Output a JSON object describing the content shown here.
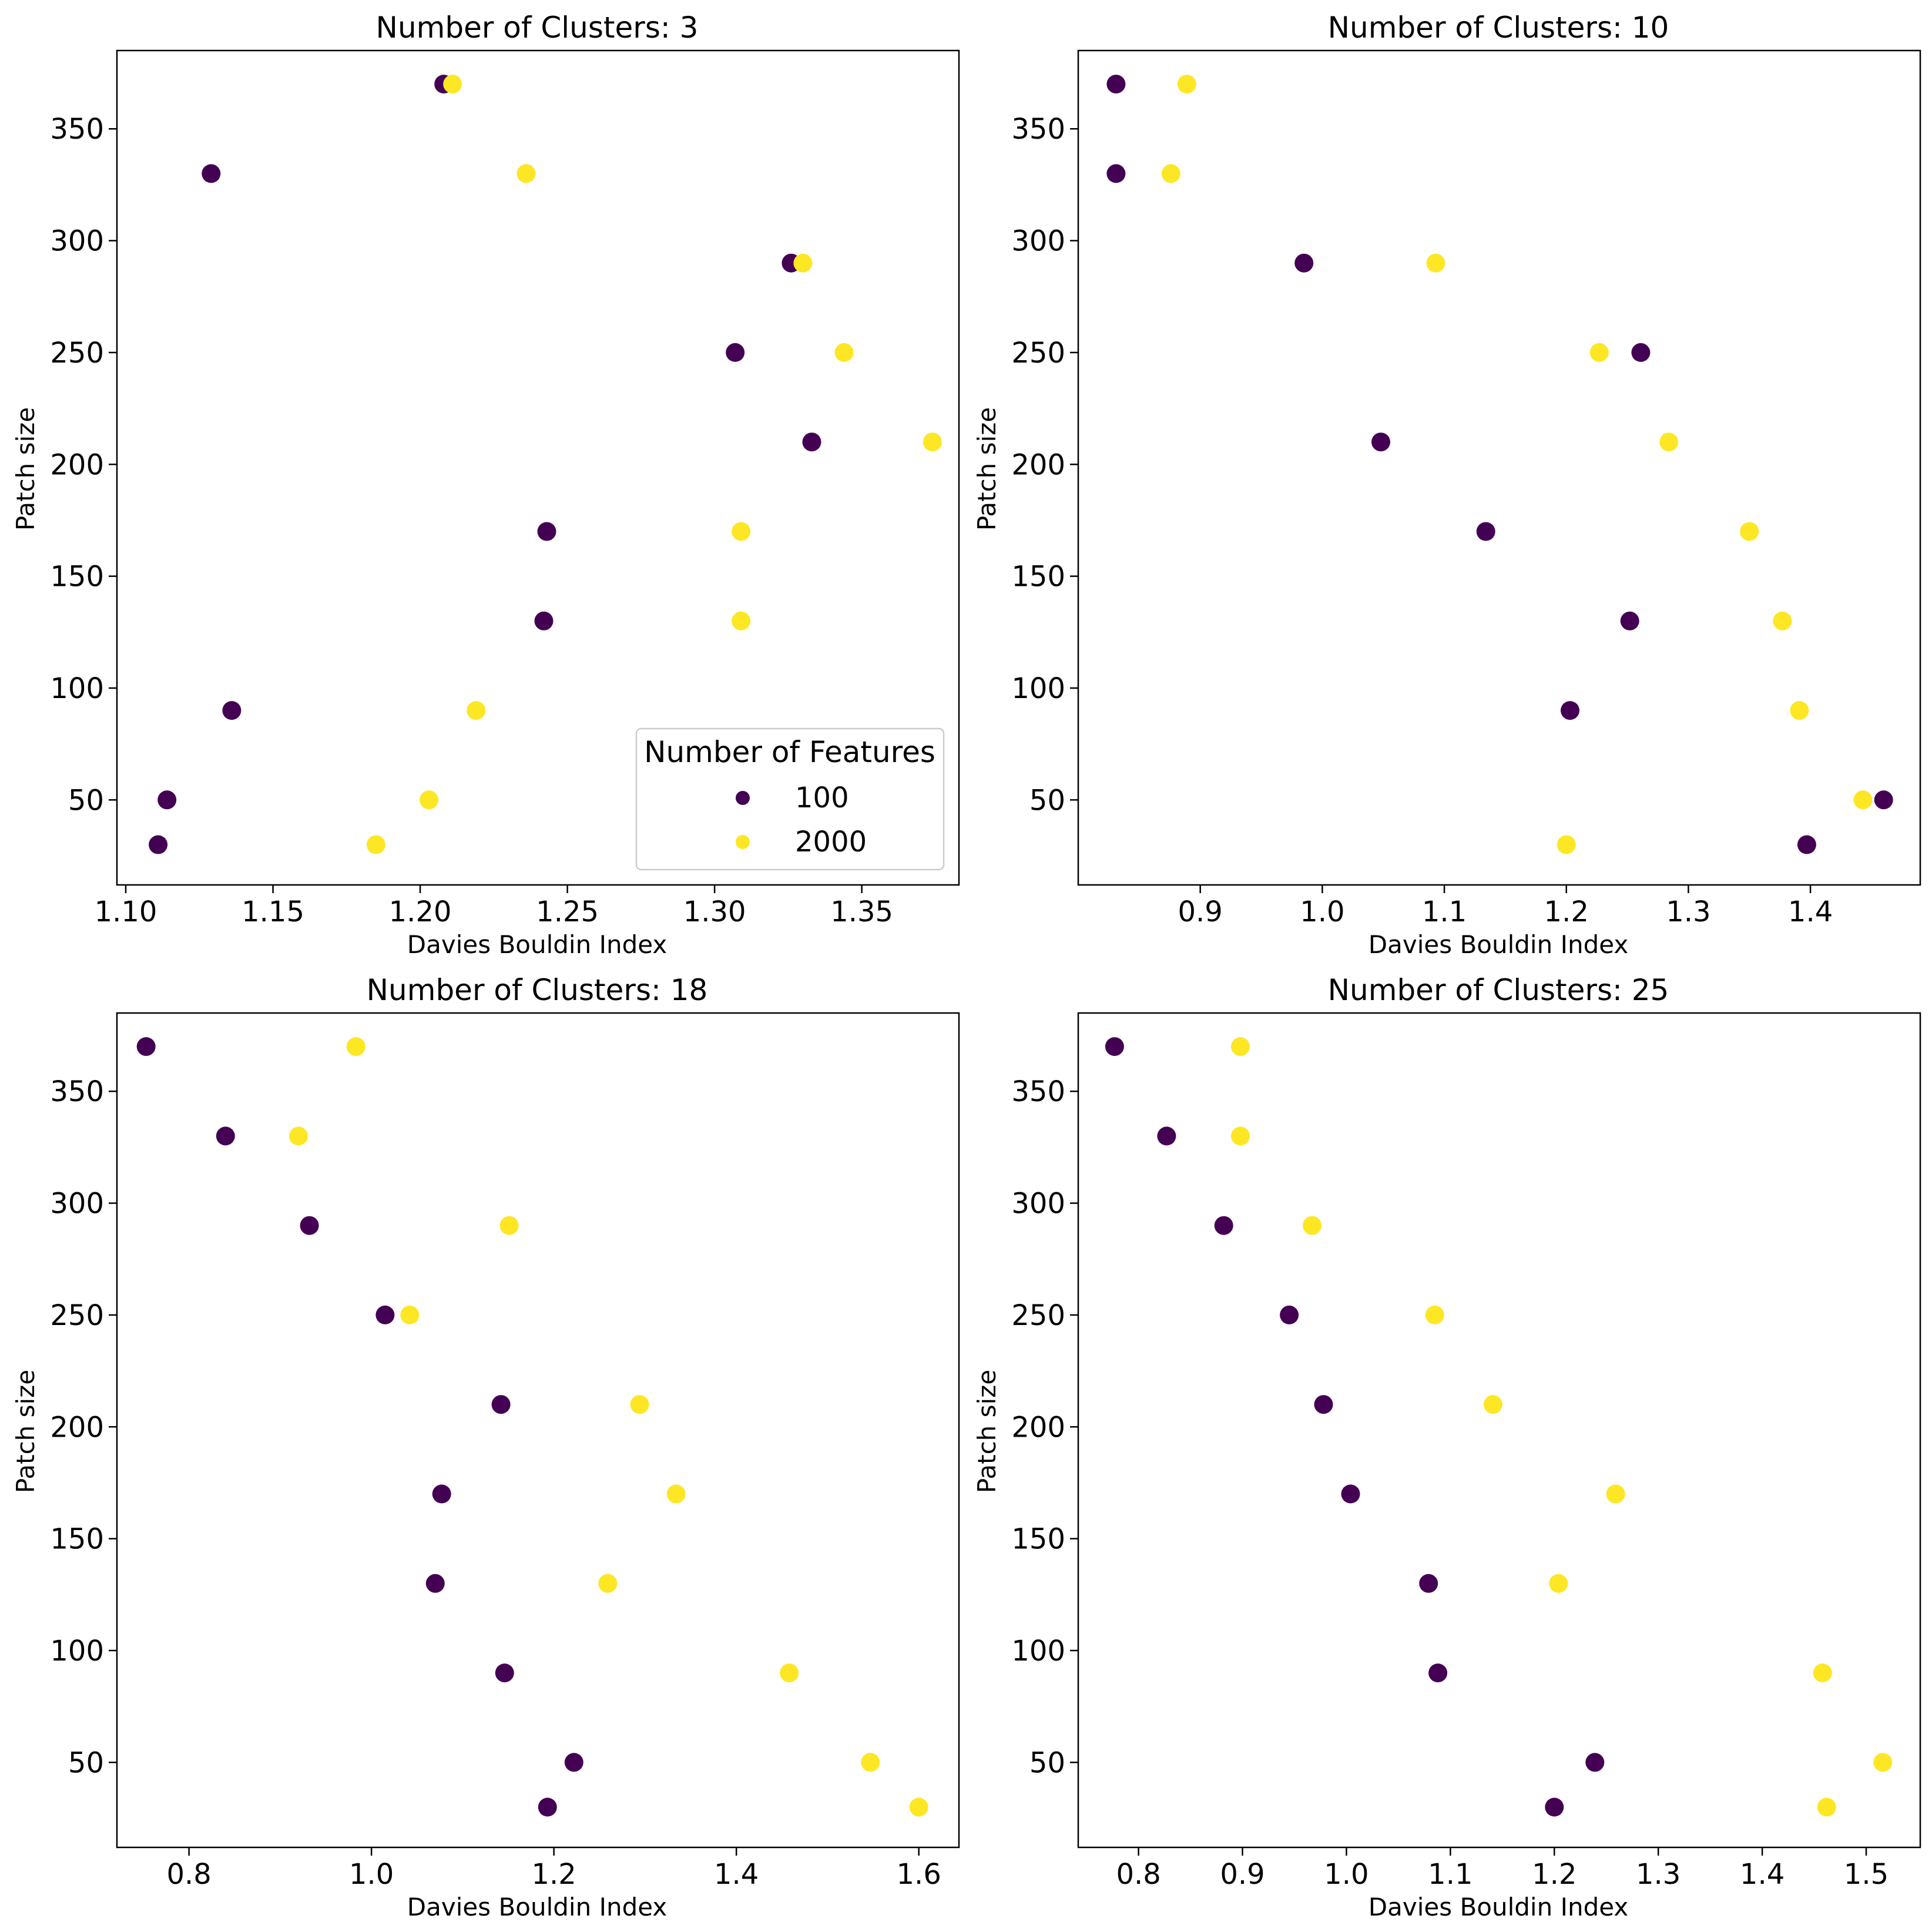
{
  "colors": {
    "feat_100": "#440154",
    "feat_2000": "#fde725"
  },
  "legend": {
    "title": "Number of Features",
    "entries": [
      {
        "label": "100",
        "color": "#440154"
      },
      {
        "label": "2000",
        "color": "#fde725"
      }
    ]
  },
  "chart_data": [
    {
      "type": "scatter",
      "title": "Number of Clusters: 3",
      "xlabel": "Davies Bouldin Index",
      "ylabel": "Patch size",
      "xlim": [
        1.097,
        1.383
      ],
      "ylim": [
        12,
        385
      ],
      "xticks": [
        1.1,
        1.15,
        1.2,
        1.25,
        1.3,
        1.35
      ],
      "xtick_labels": [
        "1.10",
        "1.15",
        "1.20",
        "1.25",
        "1.30",
        "1.35"
      ],
      "yticks": [
        50,
        100,
        150,
        200,
        250,
        300,
        350
      ],
      "ytick_labels": [
        "50",
        "100",
        "150",
        "200",
        "250",
        "300",
        "350"
      ],
      "legend_position": "lower-right",
      "series": [
        {
          "name": "100",
          "points": [
            [
              1.111,
              30
            ],
            [
              1.114,
              50
            ],
            [
              1.136,
              90
            ],
            [
              1.242,
              130
            ],
            [
              1.243,
              170
            ],
            [
              1.333,
              210
            ],
            [
              1.307,
              250
            ],
            [
              1.326,
              290
            ],
            [
              1.129,
              330
            ],
            [
              1.208,
              370
            ]
          ]
        },
        {
          "name": "2000",
          "points": [
            [
              1.185,
              30
            ],
            [
              1.203,
              50
            ],
            [
              1.219,
              90
            ],
            [
              1.309,
              130
            ],
            [
              1.309,
              170
            ],
            [
              1.374,
              210
            ],
            [
              1.344,
              250
            ],
            [
              1.33,
              290
            ],
            [
              1.236,
              330
            ],
            [
              1.211,
              370
            ]
          ]
        }
      ]
    },
    {
      "type": "scatter",
      "title": "Number of Clusters: 10",
      "xlabel": "Davies Bouldin Index",
      "ylabel": "Patch size",
      "xlim": [
        0.8,
        1.49
      ],
      "ylim": [
        12,
        385
      ],
      "xticks": [
        0.9,
        1.0,
        1.1,
        1.2,
        1.3,
        1.4
      ],
      "xtick_labels": [
        "0.9",
        "1.0",
        "1.1",
        "1.2",
        "1.3",
        "1.4"
      ],
      "yticks": [
        50,
        100,
        150,
        200,
        250,
        300,
        350
      ],
      "ytick_labels": [
        "50",
        "100",
        "150",
        "200",
        "250",
        "300",
        "350"
      ],
      "series": [
        {
          "name": "100",
          "points": [
            [
              1.397,
              30
            ],
            [
              1.46,
              50
            ],
            [
              1.203,
              90
            ],
            [
              1.252,
              130
            ],
            [
              1.134,
              170
            ],
            [
              1.048,
              210
            ],
            [
              1.261,
              250
            ],
            [
              0.985,
              290
            ],
            [
              0.831,
              330
            ],
            [
              0.831,
              370
            ]
          ]
        },
        {
          "name": "2000",
          "points": [
            [
              1.2,
              30
            ],
            [
              1.443,
              50
            ],
            [
              1.391,
              90
            ],
            [
              1.377,
              130
            ],
            [
              1.35,
              170
            ],
            [
              1.284,
              210
            ],
            [
              1.227,
              250
            ],
            [
              1.093,
              290
            ],
            [
              0.876,
              330
            ],
            [
              0.889,
              370
            ]
          ]
        }
      ]
    },
    {
      "type": "scatter",
      "title": "Number of Clusters: 18",
      "xlabel": "Davies Bouldin Index",
      "ylabel": "Patch size",
      "xlim": [
        0.721,
        1.644
      ],
      "ylim": [
        12,
        385
      ],
      "xticks": [
        0.8,
        1.0,
        1.2,
        1.4,
        1.6
      ],
      "xtick_labels": [
        "0.8",
        "1.0",
        "1.2",
        "1.4",
        "1.6"
      ],
      "yticks": [
        50,
        100,
        150,
        200,
        250,
        300,
        350
      ],
      "ytick_labels": [
        "50",
        "100",
        "150",
        "200",
        "250",
        "300",
        "350"
      ],
      "series": [
        {
          "name": "100",
          "points": [
            [
              1.193,
              30
            ],
            [
              1.222,
              50
            ],
            [
              1.146,
              90
            ],
            [
              1.07,
              130
            ],
            [
              1.077,
              170
            ],
            [
              1.142,
              210
            ],
            [
              1.015,
              250
            ],
            [
              0.932,
              290
            ],
            [
              0.84,
              330
            ],
            [
              0.753,
              370
            ]
          ]
        },
        {
          "name": "2000",
          "points": [
            [
              1.6,
              30
            ],
            [
              1.547,
              50
            ],
            [
              1.458,
              90
            ],
            [
              1.259,
              130
            ],
            [
              1.334,
              170
            ],
            [
              1.294,
              210
            ],
            [
              1.042,
              250
            ],
            [
              1.151,
              290
            ],
            [
              0.92,
              330
            ],
            [
              0.983,
              370
            ]
          ]
        }
      ]
    },
    {
      "type": "scatter",
      "title": "Number of Clusters: 25",
      "xlabel": "Davies Bouldin Index",
      "ylabel": "Patch size",
      "xlim": [
        0.742,
        1.552
      ],
      "ylim": [
        12,
        385
      ],
      "xticks": [
        0.8,
        0.9,
        1.0,
        1.1,
        1.2,
        1.3,
        1.4,
        1.5
      ],
      "xtick_labels": [
        "0.8",
        "0.9",
        "1.0",
        "1.1",
        "1.2",
        "1.3",
        "1.4",
        "1.5"
      ],
      "yticks": [
        50,
        100,
        150,
        200,
        250,
        300,
        350
      ],
      "ytick_labels": [
        "50",
        "100",
        "150",
        "200",
        "250",
        "300",
        "350"
      ],
      "series": [
        {
          "name": "100",
          "points": [
            [
              1.2,
              30
            ],
            [
              1.239,
              50
            ],
            [
              1.088,
              90
            ],
            [
              1.079,
              130
            ],
            [
              1.004,
              170
            ],
            [
              0.978,
              210
            ],
            [
              0.945,
              250
            ],
            [
              0.882,
              290
            ],
            [
              0.827,
              330
            ],
            [
              0.777,
              370
            ]
          ]
        },
        {
          "name": "2000",
          "points": [
            [
              1.462,
              30
            ],
            [
              1.516,
              50
            ],
            [
              1.458,
              90
            ],
            [
              1.204,
              130
            ],
            [
              1.259,
              170
            ],
            [
              1.141,
              210
            ],
            [
              1.085,
              250
            ],
            [
              0.967,
              290
            ],
            [
              0.898,
              330
            ],
            [
              0.898,
              370
            ]
          ]
        }
      ]
    }
  ]
}
